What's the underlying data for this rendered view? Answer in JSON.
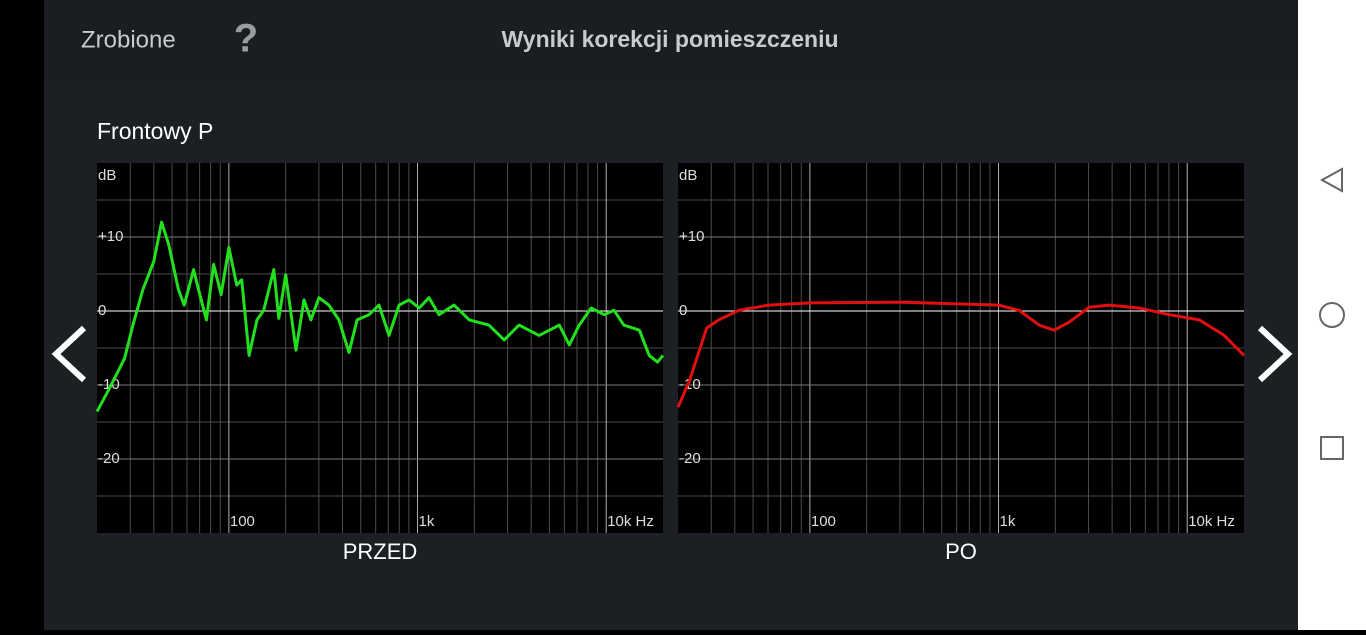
{
  "header": {
    "back": "Zrobione",
    "help": "?",
    "title": "Wyniki korekcji pomieszczeniu"
  },
  "section_title": "Frontowy P",
  "chart_data": [
    {
      "type": "line",
      "title": "PRZED",
      "y_label": "dB",
      "x_log": true,
      "xlim": [
        20,
        20000
      ],
      "ylim": [
        -30,
        20
      ],
      "xticks": [
        100,
        {
          "value": 1000,
          "label": "1k"
        },
        {
          "value": 10000,
          "label": "10k Hz"
        }
      ],
      "yticks": [
        {
          "value": 10,
          "label": "+10"
        },
        0,
        -10,
        -20
      ],
      "x_minor_grid": [
        30,
        40,
        50,
        60,
        70,
        80,
        90,
        200,
        300,
        400,
        500,
        600,
        700,
        800,
        900,
        2000,
        3000,
        4000,
        5000,
        6000,
        7000,
        8000,
        9000
      ],
      "y_minor_grid": [
        -25,
        -15,
        -5,
        5,
        15
      ],
      "x": [
        20,
        23,
        28,
        31,
        35,
        40,
        44,
        48,
        54,
        58,
        65,
        69,
        76,
        83,
        91,
        100,
        110,
        117,
        128,
        141,
        153,
        173,
        184,
        200,
        227,
        250,
        272,
        300,
        339,
        383,
        433,
        478,
        553,
        625,
        706,
        798,
        901,
        1020,
        1150,
        1300,
        1560,
        1880,
        2390,
        2880,
        3450,
        4410,
        5640,
        6370,
        7190,
        8330,
        9750,
        11000,
        12400,
        15000,
        16900,
        18700,
        20000
      ],
      "series": [
        {
          "color": "#22e01e",
          "values": [
            -13.6,
            -10.7,
            -6.4,
            -1.9,
            2.9,
            6.7,
            12.0,
            9.0,
            2.9,
            0.8,
            5.6,
            2.9,
            -1.2,
            6.3,
            2.2,
            8.6,
            3.5,
            4.2,
            -6.0,
            -1.2,
            0.1,
            5.6,
            -1.0,
            4.9,
            -5.3,
            1.5,
            -1.2,
            1.8,
            0.8,
            -1.2,
            -5.6,
            -1.2,
            -0.5,
            0.8,
            -3.3,
            0.8,
            1.5,
            0.4,
            1.8,
            -0.5,
            0.8,
            -1.2,
            -1.9,
            -3.9,
            -1.9,
            -3.3,
            -1.9,
            -4.6,
            -1.9,
            0.4,
            -0.5,
            0.1,
            -1.9,
            -2.6,
            -6.0,
            -6.9,
            -6.0
          ]
        }
      ]
    },
    {
      "type": "line",
      "title": "PO",
      "y_label": "dB",
      "x_log": true,
      "xlim": [
        20,
        20000
      ],
      "ylim": [
        -30,
        20
      ],
      "xticks": [
        100,
        {
          "value": 1000,
          "label": "1k"
        },
        {
          "value": 10000,
          "label": "10k Hz"
        }
      ],
      "yticks": [
        {
          "value": 10,
          "label": "+10"
        },
        0,
        -10,
        -20
      ],
      "x_minor_grid": [
        30,
        40,
        50,
        60,
        70,
        80,
        90,
        200,
        300,
        400,
        500,
        600,
        700,
        800,
        900,
        2000,
        3000,
        4000,
        5000,
        6000,
        7000,
        8000,
        9000
      ],
      "y_minor_grid": [
        -25,
        -15,
        -5,
        5,
        15
      ],
      "x": [
        20,
        23,
        28.4,
        32.9,
        42,
        60.6,
        100,
        300,
        1000,
        1285,
        1640,
        1970,
        2370,
        3020,
        3860,
        5560,
        8030,
        11600,
        15700,
        20000
      ],
      "series": [
        {
          "color": "#e01010",
          "values": [
            -13.0,
            -9.4,
            -2.3,
            -1.2,
            0.1,
            0.8,
            1.1,
            1.2,
            0.8,
            0.1,
            -1.9,
            -2.6,
            -1.5,
            0.5,
            0.8,
            0.4,
            -0.5,
            -1.2,
            -3.3,
            -6.0
          ]
        }
      ]
    }
  ]
}
